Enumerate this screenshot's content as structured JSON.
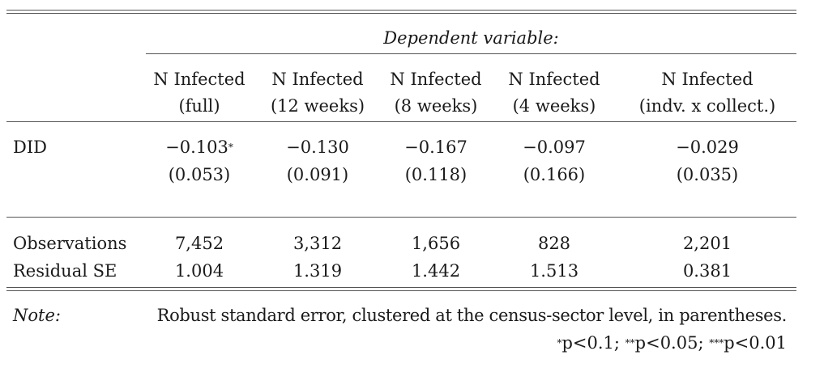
{
  "caption": "Dependent variable:",
  "columns": [
    {
      "line1": "N Infected",
      "line2": "(full)"
    },
    {
      "line1": "N Infected",
      "line2": "(12 weeks)"
    },
    {
      "line1": "N Infected",
      "line2": "(8 weeks)"
    },
    {
      "line1": "N Infected",
      "line2": "(4 weeks)"
    },
    {
      "line1": "N Infected",
      "line2": "(indv. x collect.)"
    }
  ],
  "did": {
    "label": "DID",
    "coefs": [
      "−0.103",
      "−0.130",
      "−0.167",
      "−0.097",
      "−0.029"
    ],
    "stars": [
      "*",
      "",
      "",
      "",
      ""
    ],
    "ses": [
      "(0.053)",
      "(0.091)",
      "(0.118)",
      "(0.166)",
      "(0.035)"
    ]
  },
  "stats": [
    {
      "label": "Observations",
      "values": [
        "7,452",
        "3,312",
        "1,656",
        "828",
        "2,201"
      ]
    },
    {
      "label": "Residual SE",
      "values": [
        "1.004",
        "1.319",
        "1.442",
        "1.513",
        "0.381"
      ]
    }
  ],
  "note": {
    "label": "Note:",
    "text": "Robust standard error, clustered at the census-sector level, in parentheses.",
    "sig": [
      {
        "stars": "*",
        "text": "p<0.1; "
      },
      {
        "stars": "**",
        "text": "p<0.05; "
      },
      {
        "stars": "***",
        "text": "p<0.01"
      }
    ]
  }
}
